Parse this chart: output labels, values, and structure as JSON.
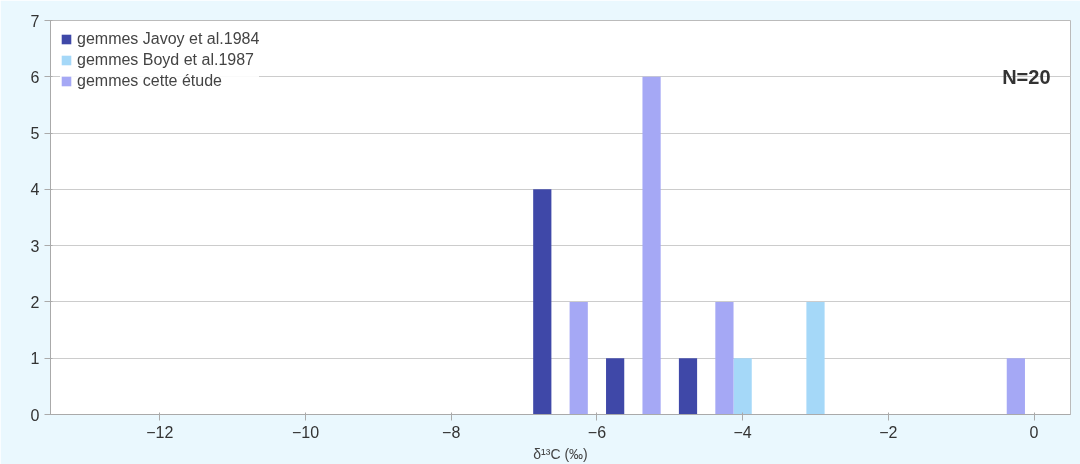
{
  "chart_data": {
    "type": "bar",
    "xlabel": "δ¹³C (‰)",
    "annotations": [
      "N=20"
    ],
    "xlim": [
      -13.5,
      0.5
    ],
    "xticks": [
      -12,
      -10,
      -8,
      -6,
      -4,
      -2,
      0
    ],
    "ylim": [
      0,
      7
    ],
    "yticks": [
      0,
      1,
      2,
      3,
      4,
      5,
      6,
      7
    ],
    "grid": "y",
    "legend": "top left",
    "series": [
      {
        "name": "gemmes Javoy et al.1984",
        "color": "#3f48a8",
        "x": [
          -6.75,
          -5.75,
          -4.75
        ],
        "values": [
          4,
          1,
          1
        ]
      },
      {
        "name": "gemmes Boyd et al.1987",
        "color": "#a5d8f8",
        "x": [
          -4,
          -3
        ],
        "values": [
          1,
          2
        ]
      },
      {
        "name": "gemmes cette étude",
        "color": "#a5a8f5",
        "x": [
          -6.25,
          -5.25,
          -4.25,
          -0.25
        ],
        "values": [
          2,
          6,
          2,
          1
        ]
      }
    ]
  }
}
